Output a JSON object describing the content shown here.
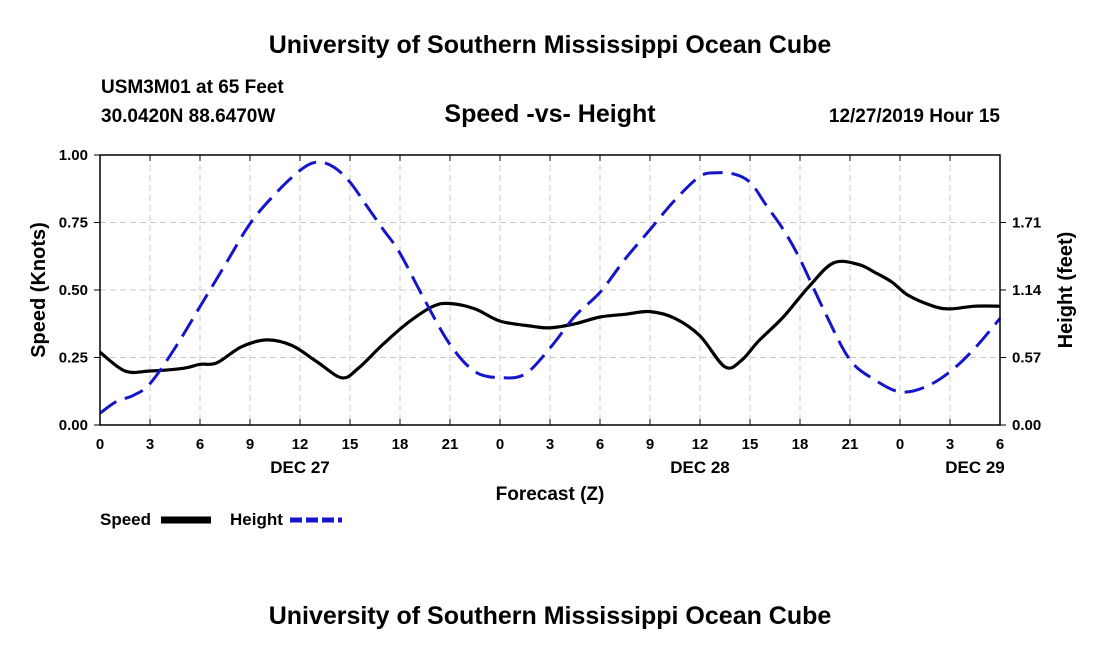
{
  "header": {
    "title": "University of Southern Mississippi Ocean Cube",
    "station": "USM3M01 at 65 Feet",
    "coords": "30.0420N 88.6470W",
    "timestamp": "12/27/2019 Hour 15"
  },
  "footer": {
    "title": "University of Southern Mississippi Ocean Cube"
  },
  "colors": {
    "speed": "#000000",
    "height": "#1515cc",
    "grid": "#c8c8c8"
  },
  "chart_data": {
    "type": "line",
    "title": "Speed -vs- Height",
    "xlabel": "Forecast (Z)",
    "ylabel": "Speed (Knots)",
    "y2label": "Height (feet)",
    "x_unit": "hours from Dec 27 00Z",
    "xlim": [
      0,
      54
    ],
    "ylim": [
      0,
      1.0
    ],
    "y2lim": [
      0,
      2.28
    ],
    "x_ticks": [
      0,
      3,
      6,
      9,
      12,
      15,
      18,
      21,
      24,
      27,
      30,
      33,
      36,
      39,
      42,
      45,
      48,
      51,
      54
    ],
    "x_tick_labels": [
      "0",
      "3",
      "6",
      "9",
      "12",
      "15",
      "18",
      "21",
      "0",
      "3",
      "6",
      "9",
      "12",
      "15",
      "18",
      "21",
      "0",
      "3",
      "6"
    ],
    "y_ticks": [
      0,
      0.25,
      0.5,
      0.75,
      1.0
    ],
    "y_tick_labels": [
      "0.00",
      "0.25",
      "0.50",
      "0.75",
      "1.00"
    ],
    "y2_ticks": [
      0,
      0.57,
      1.14,
      1.71
    ],
    "y2_tick_labels": [
      "0.00",
      "0.57",
      "1.14",
      "1.71"
    ],
    "date_labels": [
      {
        "label": "DEC 27",
        "x": 12
      },
      {
        "label": "DEC 28",
        "x": 36
      },
      {
        "label": "DEC 29",
        "x": 52.5
      }
    ],
    "grid": true,
    "legend_position": "bottom-left",
    "series": [
      {
        "name": "Speed",
        "axis": "left",
        "style": "solid",
        "color": "#000000",
        "x": [
          0,
          1.5,
          3,
          5,
          6,
          7,
          8.5,
          10,
          11.5,
          13,
          14.5,
          15.5,
          17,
          18.5,
          20,
          21,
          22.5,
          24,
          26,
          27,
          28.5,
          30,
          31.5,
          33,
          34.5,
          36,
          37.5,
          38.5,
          39.5,
          41,
          42.5,
          44,
          45.5,
          46.5,
          47.5,
          48.5,
          50,
          51,
          52.5,
          54
        ],
        "values": [
          0.27,
          0.2,
          0.2,
          0.21,
          0.225,
          0.23,
          0.29,
          0.315,
          0.295,
          0.235,
          0.175,
          0.21,
          0.3,
          0.38,
          0.44,
          0.45,
          0.43,
          0.385,
          0.365,
          0.36,
          0.375,
          0.4,
          0.41,
          0.42,
          0.395,
          0.33,
          0.215,
          0.24,
          0.31,
          0.4,
          0.51,
          0.6,
          0.595,
          0.565,
          0.53,
          0.48,
          0.44,
          0.43,
          0.44,
          0.44
        ]
      },
      {
        "name": "Height",
        "axis": "right",
        "style": "dashed",
        "color": "#1515cc",
        "x": [
          0,
          1,
          2,
          3,
          4.5,
          6,
          7.5,
          9,
          10.5,
          12,
          13,
          14,
          15,
          16,
          17,
          18,
          19.5,
          21,
          22.5,
          24,
          25.5,
          27,
          28.5,
          30,
          31.5,
          33,
          34.5,
          36,
          37,
          38,
          39,
          40,
          41,
          42,
          43.5,
          45,
          46.5,
          48,
          49.5,
          51,
          52.5,
          54
        ],
        "values": [
          0.1,
          0.2,
          0.25,
          0.35,
          0.65,
          1.0,
          1.35,
          1.7,
          1.95,
          2.15,
          2.22,
          2.18,
          2.05,
          1.85,
          1.65,
          1.45,
          1.05,
          0.68,
          0.45,
          0.4,
          0.43,
          0.65,
          0.92,
          1.12,
          1.4,
          1.65,
          1.9,
          2.1,
          2.13,
          2.12,
          2.05,
          1.85,
          1.65,
          1.4,
          0.95,
          0.55,
          0.38,
          0.28,
          0.32,
          0.45,
          0.65,
          0.9
        ]
      }
    ]
  }
}
